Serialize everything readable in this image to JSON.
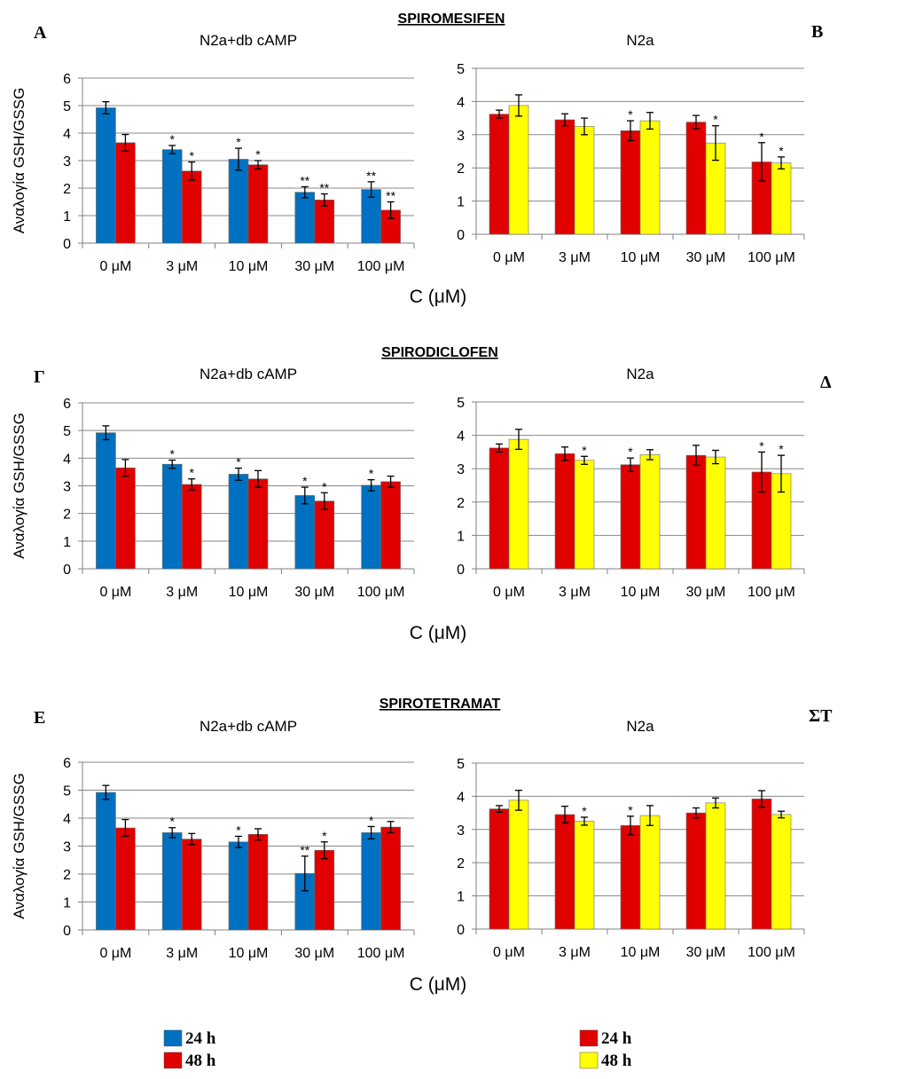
{
  "colors": {
    "blue": "#0070C0",
    "red": "#E00000",
    "yellow": "#FFFF00",
    "axis": "#808080",
    "grid": "#888888"
  },
  "x_axis_label": "C (μM)",
  "y_axis_label": "Αναλογία GSH/GSSG",
  "sections": [
    {
      "title": "SPIROMESIFEN"
    },
    {
      "title": "SPIRODICLOFEN"
    },
    {
      "title": "SPIROTETRAMAT"
    }
  ],
  "legends": [
    {
      "items": [
        {
          "label": "24 h",
          "color": "#0070C0"
        },
        {
          "label": "48 h",
          "color": "#E00000"
        }
      ]
    },
    {
      "items": [
        {
          "label": "24 h",
          "color": "#E00000"
        },
        {
          "label": "48 h",
          "color": "#FFFF00"
        }
      ]
    }
  ],
  "chart_data": [
    {
      "panel": "A",
      "type": "bar",
      "title": "N2a+db cAMP",
      "ylim": [
        0,
        6
      ],
      "yticks": [
        0,
        1,
        2,
        3,
        4,
        5,
        6
      ],
      "categories": [
        "0 μM",
        "3 μM",
        "10 μM",
        "30 μM",
        "100 μM"
      ],
      "series": [
        {
          "name": "24 h",
          "color": "#0070C0",
          "values": [
            4.92,
            3.4,
            3.05,
            1.85,
            1.95
          ],
          "errors": [
            0.22,
            0.15,
            0.4,
            0.2,
            0.28
          ],
          "annotations": [
            "",
            "*",
            "*",
            "**",
            "**"
          ]
        },
        {
          "name": "48 h",
          "color": "#E00000",
          "values": [
            3.65,
            2.62,
            2.85,
            1.57,
            1.2
          ],
          "errors": [
            0.3,
            0.33,
            0.15,
            0.22,
            0.3
          ],
          "annotations": [
            "",
            "*",
            "*",
            "**",
            "**"
          ]
        }
      ]
    },
    {
      "panel": "B",
      "type": "bar",
      "title": "N2a",
      "ylim": [
        0,
        5
      ],
      "yticks": [
        0,
        1,
        2,
        3,
        4,
        5
      ],
      "categories": [
        "0 μM",
        "3 μM",
        "10 μM",
        "30 μM",
        "100 μM"
      ],
      "series": [
        {
          "name": "24 h",
          "color": "#E00000",
          "values": [
            3.62,
            3.45,
            3.12,
            3.38,
            2.18
          ],
          "errors": [
            0.12,
            0.18,
            0.3,
            0.2,
            0.58
          ],
          "annotations": [
            "",
            "",
            "*",
            "",
            "*"
          ]
        },
        {
          "name": "48 h",
          "color": "#FFFF00",
          "values": [
            3.88,
            3.25,
            3.42,
            2.75,
            2.15
          ],
          "errors": [
            0.32,
            0.25,
            0.25,
            0.52,
            0.18
          ],
          "annotations": [
            "",
            "",
            "",
            "*",
            "*"
          ]
        }
      ]
    },
    {
      "panel": "Γ",
      "type": "bar",
      "title": "N2a+db cAMP",
      "ylim": [
        0,
        6
      ],
      "yticks": [
        0,
        1,
        2,
        3,
        4,
        5,
        6
      ],
      "categories": [
        "0 μM",
        "3 μM",
        "10 μM",
        "30 μM",
        "100 μM"
      ],
      "series": [
        {
          "name": "24 h",
          "color": "#0070C0",
          "values": [
            4.92,
            3.78,
            3.42,
            2.65,
            3.02
          ],
          "errors": [
            0.25,
            0.15,
            0.22,
            0.3,
            0.2
          ],
          "annotations": [
            "",
            "*",
            "*",
            "*",
            "*"
          ]
        },
        {
          "name": "48 h",
          "color": "#E00000",
          "values": [
            3.65,
            3.05,
            3.25,
            2.45,
            3.15
          ],
          "errors": [
            0.3,
            0.2,
            0.3,
            0.3,
            0.2
          ],
          "annotations": [
            "",
            "*",
            "",
            "*",
            ""
          ]
        }
      ]
    },
    {
      "panel": "Δ",
      "type": "bar",
      "title": "N2a",
      "ylim": [
        0,
        5
      ],
      "yticks": [
        0,
        1,
        2,
        3,
        4,
        5
      ],
      "categories": [
        "0 μM",
        "3 μM",
        "10 μM",
        "30 μM",
        "100 μM"
      ],
      "series": [
        {
          "name": "24 h",
          "color": "#E00000",
          "values": [
            3.62,
            3.45,
            3.12,
            3.4,
            2.9
          ],
          "errors": [
            0.12,
            0.2,
            0.2,
            0.3,
            0.6
          ],
          "annotations": [
            "",
            "",
            "*",
            "",
            "*"
          ]
        },
        {
          "name": "48 h",
          "color": "#FFFF00",
          "values": [
            3.88,
            3.25,
            3.42,
            3.35,
            2.85
          ],
          "errors": [
            0.3,
            0.12,
            0.15,
            0.2,
            0.55
          ],
          "annotations": [
            "",
            "*",
            "",
            "",
            "*"
          ]
        }
      ]
    },
    {
      "panel": "E",
      "type": "bar",
      "title": "N2a+db cAMP",
      "ylim": [
        0,
        6
      ],
      "yticks": [
        0,
        1,
        2,
        3,
        4,
        5,
        6
      ],
      "categories": [
        "0 μM",
        "3 μM",
        "10 μM",
        "30 μM",
        "100 μM"
      ],
      "series": [
        {
          "name": "24 h",
          "color": "#0070C0",
          "values": [
            4.92,
            3.48,
            3.15,
            2.02,
            3.48
          ],
          "errors": [
            0.25,
            0.18,
            0.2,
            0.62,
            0.22
          ],
          "annotations": [
            "",
            "*",
            "*",
            "**",
            "*"
          ]
        },
        {
          "name": "48 h",
          "color": "#E00000",
          "values": [
            3.65,
            3.25,
            3.42,
            2.85,
            3.68
          ],
          "errors": [
            0.3,
            0.2,
            0.2,
            0.3,
            0.2
          ],
          "annotations": [
            "",
            "",
            "",
            "*",
            ""
          ]
        }
      ]
    },
    {
      "panel": "ΣΤ",
      "type": "bar",
      "title": "N2a",
      "ylim": [
        0,
        5
      ],
      "yticks": [
        0,
        1,
        2,
        3,
        4,
        5
      ],
      "categories": [
        "0 μM",
        "3 μM",
        "10 μM",
        "30 μM",
        "100 μM"
      ],
      "series": [
        {
          "name": "24 h",
          "color": "#E00000",
          "values": [
            3.62,
            3.45,
            3.12,
            3.5,
            3.92
          ],
          "errors": [
            0.1,
            0.25,
            0.28,
            0.15,
            0.25
          ],
          "annotations": [
            "",
            "",
            "*",
            "",
            ""
          ]
        },
        {
          "name": "48 h",
          "color": "#FFFF00",
          "values": [
            3.88,
            3.25,
            3.42,
            3.8,
            3.45
          ],
          "errors": [
            0.3,
            0.12,
            0.3,
            0.15,
            0.1
          ],
          "annotations": [
            "",
            "*",
            "",
            "",
            ""
          ]
        }
      ]
    }
  ]
}
